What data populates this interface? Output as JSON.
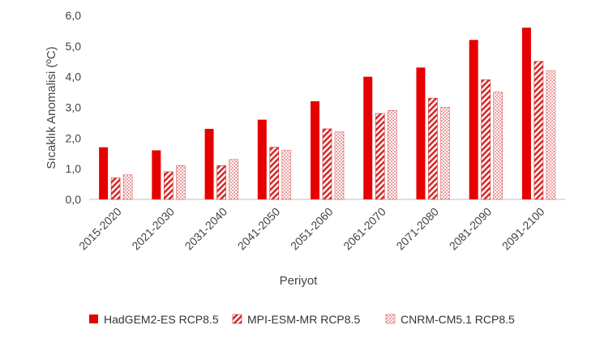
{
  "chart_data": {
    "type": "bar",
    "title": "",
    "xlabel": "Periyot",
    "ylabel": "Sıcaklık Anomalisi (ºC)",
    "ylim": [
      0,
      6
    ],
    "yticks": [
      "0,0",
      "1,0",
      "2,0",
      "3,0",
      "4,0",
      "5,0",
      "6,0"
    ],
    "grid": false,
    "legend_position": "bottom",
    "categories": [
      "2015-2020",
      "2021-2030",
      "2031-2040",
      "2041-2050",
      "2051-2060",
      "2061-2070",
      "2071-2080",
      "2081-2090",
      "2091-2100"
    ],
    "series": [
      {
        "name": "HadGEM2-ES RCP8.5",
        "color": "#e60000",
        "fill": "solid",
        "values": [
          1.7,
          1.6,
          2.3,
          2.6,
          3.2,
          4.0,
          4.3,
          5.2,
          5.6
        ]
      },
      {
        "name": "MPI-ESM-MR RCP8.5",
        "color": "#d42a2a",
        "fill": "diagonal-hatch",
        "values": [
          0.7,
          0.9,
          1.1,
          1.7,
          2.3,
          2.8,
          3.3,
          3.9,
          4.5
        ]
      },
      {
        "name": "CNRM-CM5.1 RCP8.5",
        "color": "#e06060",
        "fill": "dotted",
        "values": [
          0.8,
          1.1,
          1.3,
          1.6,
          2.2,
          2.9,
          3.0,
          3.5,
          4.2
        ]
      }
    ]
  }
}
